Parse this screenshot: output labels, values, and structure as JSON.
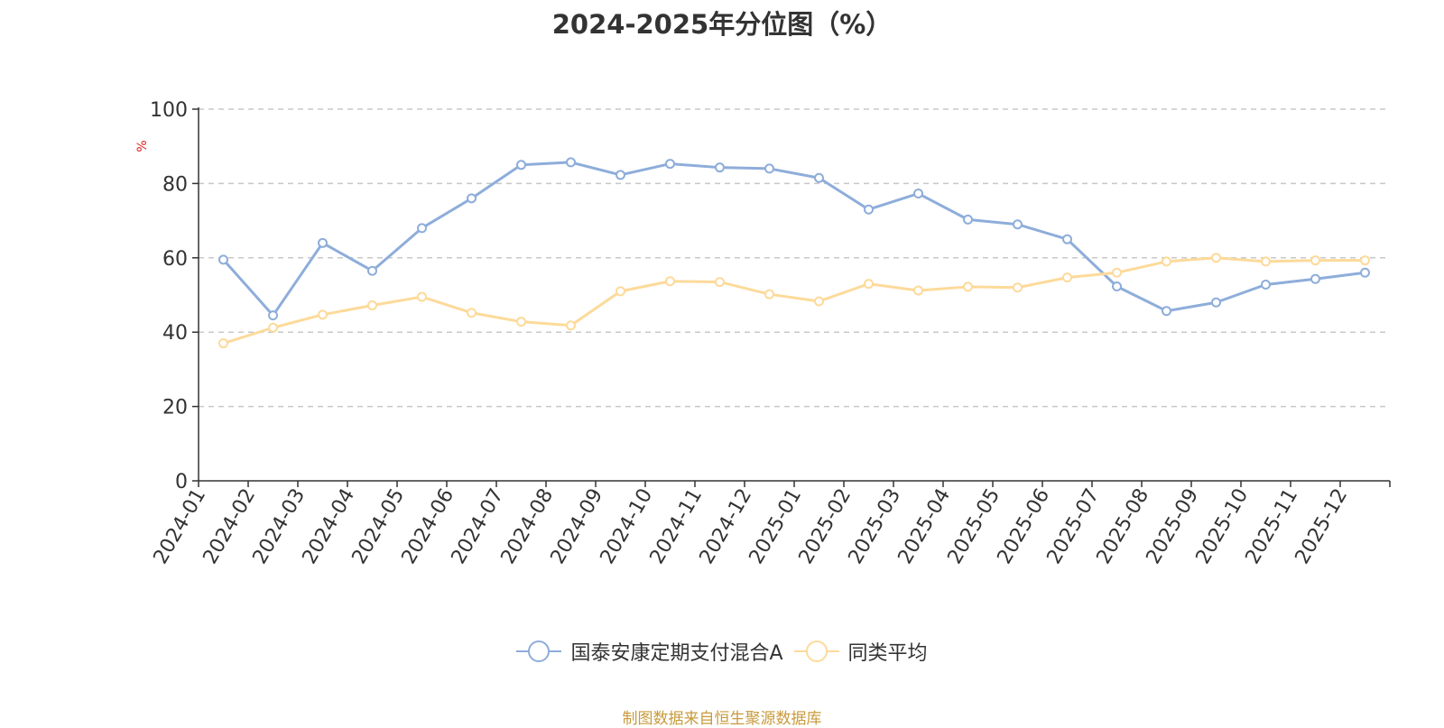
{
  "title": "2024-2025年分位图（%）",
  "source": "制图数据来自恒生聚源数据库",
  "colors": {
    "series_a": "#8eadda",
    "series_b": "#fdda9a",
    "source_text": "#c89b3c",
    "ylabel": "#e02020"
  },
  "chart_data": {
    "type": "line",
    "title": "2024-2025年分位图（%）",
    "ylabel": "%",
    "ylim": [
      0,
      100
    ],
    "yticks": [
      0,
      20,
      40,
      60,
      80,
      100
    ],
    "grid": true,
    "legend_position": "bottom",
    "categories": [
      "2024-01",
      "2024-02",
      "2024-03",
      "2024-04",
      "2024-05",
      "2024-06",
      "2024-07",
      "2024-08",
      "2024-09",
      "2024-10",
      "2024-11",
      "2024-12",
      "2025-01",
      "2025-02",
      "2025-03",
      "2025-04",
      "2025-05",
      "2025-06",
      "2025-07",
      "2025-08",
      "2025-09",
      "2025-10",
      "2025-11",
      "2025-12"
    ],
    "series": [
      {
        "name": "国泰安康定期支付混合A",
        "values": [
          59.5,
          44.5,
          64,
          56.5,
          68,
          76,
          85,
          85.7,
          82.3,
          85.3,
          84.3,
          84,
          81.5,
          73,
          77.3,
          70.3,
          69,
          65,
          52.3,
          45.7,
          48,
          52.8,
          54.3,
          56
        ]
      },
      {
        "name": "同类平均",
        "values": [
          37,
          41.2,
          44.7,
          47.2,
          49.5,
          45.2,
          42.8,
          41.8,
          51,
          53.7,
          53.5,
          50.2,
          48.3,
          53,
          51.2,
          52.2,
          52,
          54.7,
          56,
          59,
          60,
          59,
          59.3,
          59.3
        ]
      }
    ]
  }
}
